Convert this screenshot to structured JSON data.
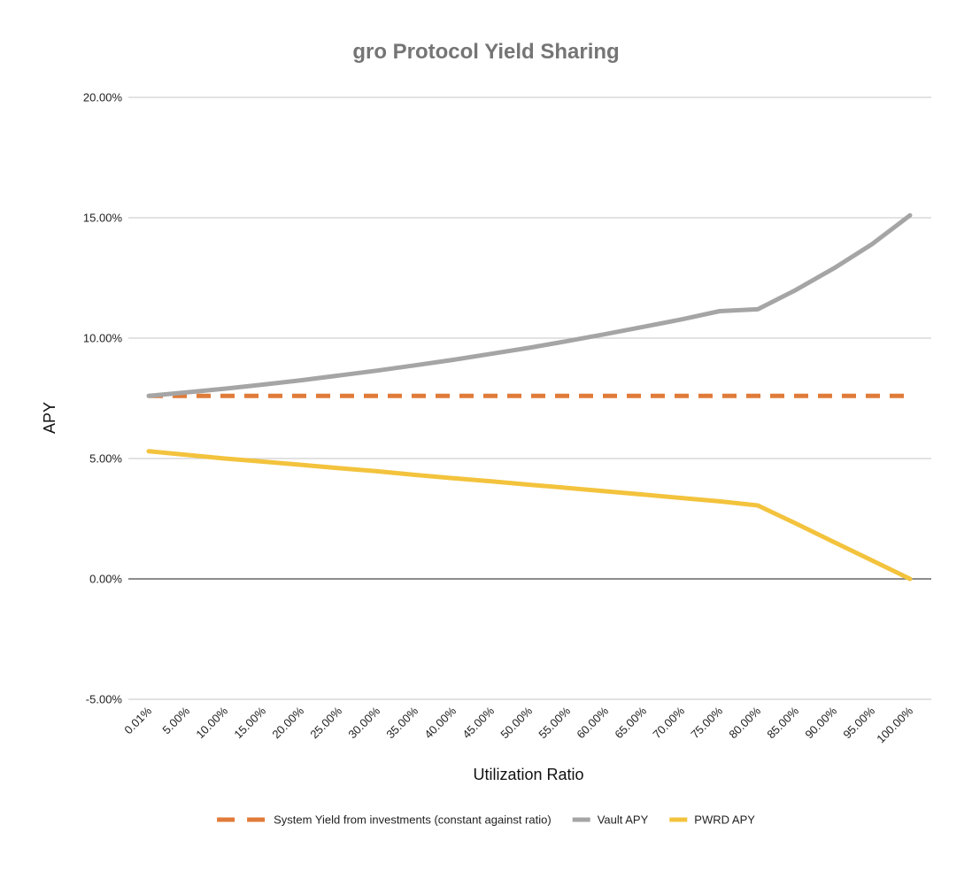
{
  "chart_data": {
    "type": "line",
    "title": "gro Protocol Yield Sharing",
    "xlabel": "Utilization Ratio",
    "ylabel": "APY",
    "x": [
      "0.01%",
      "5.00%",
      "10.00%",
      "15.00%",
      "20.00%",
      "25.00%",
      "30.00%",
      "35.00%",
      "40.00%",
      "45.00%",
      "50.00%",
      "55.00%",
      "60.00%",
      "65.00%",
      "70.00%",
      "75.00%",
      "80.00%",
      "85.00%",
      "90.00%",
      "95.00%",
      "100.00%"
    ],
    "ylim": [
      -5,
      20
    ],
    "yticks": [
      "-5.00%",
      "0.00%",
      "5.00%",
      "10.00%",
      "15.00%",
      "20.00%"
    ],
    "ytick_values": [
      -5,
      0,
      5,
      10,
      15,
      20
    ],
    "grid": true,
    "legend_position": "bottom",
    "series": [
      {
        "name": "System Yield from investments (constant against ratio)",
        "color": "#e07b39",
        "style": "dashed",
        "values": [
          7.6,
          7.6,
          7.6,
          7.6,
          7.6,
          7.6,
          7.6,
          7.6,
          7.6,
          7.6,
          7.6,
          7.6,
          7.6,
          7.6,
          7.6,
          7.6,
          7.6,
          7.6,
          7.6,
          7.6,
          7.6
        ]
      },
      {
        "name": "Vault APY",
        "color": "#a5a5a5",
        "style": "solid",
        "values": [
          7.6,
          7.75,
          7.9,
          8.07,
          8.25,
          8.45,
          8.65,
          8.87,
          9.1,
          9.35,
          9.6,
          9.88,
          10.17,
          10.47,
          10.78,
          11.12,
          11.2,
          12.0,
          12.9,
          13.9,
          15.1
        ]
      },
      {
        "name": "PWRD APY",
        "color": "#f3c33d",
        "style": "solid",
        "values": [
          5.3,
          5.15,
          5.0,
          4.87,
          4.74,
          4.6,
          4.47,
          4.32,
          4.18,
          4.05,
          3.91,
          3.78,
          3.64,
          3.5,
          3.36,
          3.22,
          3.05,
          2.3,
          1.53,
          0.77,
          0.0
        ]
      }
    ]
  }
}
